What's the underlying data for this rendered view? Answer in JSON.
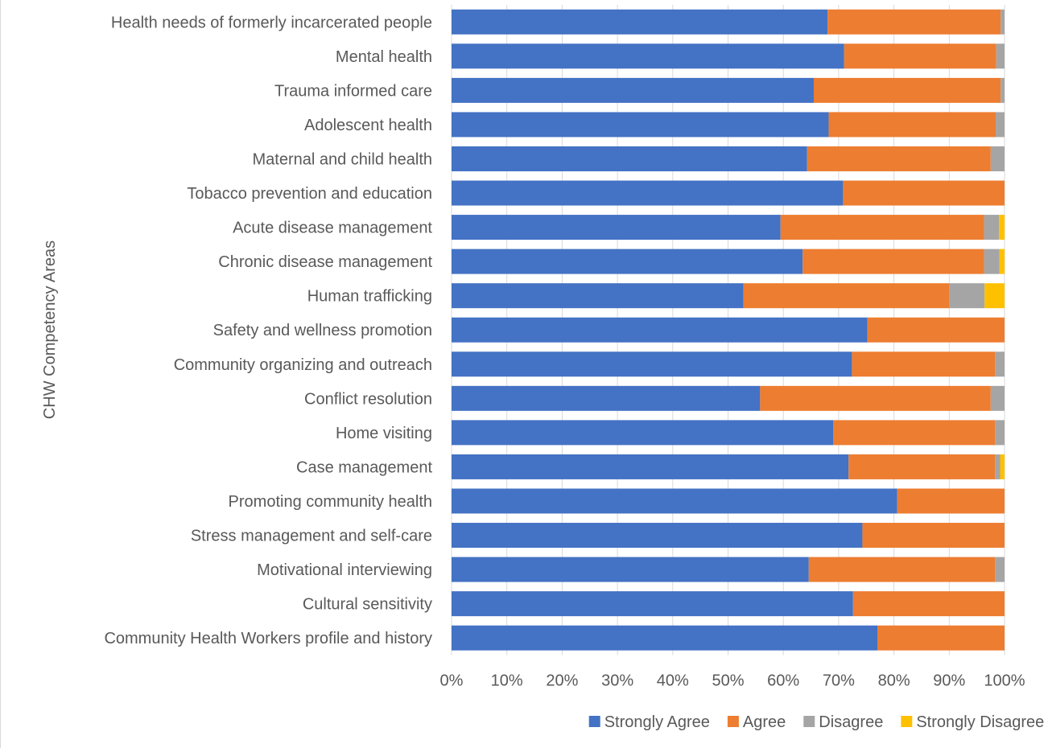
{
  "chart_data": {
    "type": "bar",
    "orientation": "horizontal",
    "stacked": "100%",
    "title": "",
    "xlabel": "",
    "ylabel": "CHW Competency Areas",
    "xlim": [
      0,
      100
    ],
    "x_ticks": [
      "0%",
      "10%",
      "20%",
      "30%",
      "40%",
      "50%",
      "60%",
      "70%",
      "80%",
      "90%",
      "100%"
    ],
    "grid": "vertical",
    "legend_position": "bottom",
    "categories": [
      "Health needs of formerly incarcerated people",
      "Mental health",
      "Trauma informed care",
      "Adolescent health",
      "Maternal and child health",
      "Tobacco prevention and education",
      "Acute disease management",
      "Chronic disease management",
      "Human trafficking",
      "Safety and wellness promotion",
      "Community organizing and outreach",
      "Conflict resolution",
      "Home visiting",
      "Case management",
      "Promoting community health",
      "Stress management and self-care",
      "Motivational interviewing",
      "Cultural sensitivity",
      "Community Health Workers profile and history"
    ],
    "series": [
      {
        "name": "Strongly Agree",
        "color": "#4472C4",
        "values": [
          68,
          71,
          65.5,
          68.2,
          64.3,
          70.8,
          59.5,
          63.5,
          52.8,
          75.2,
          72.4,
          55.8,
          69,
          71.8,
          80.6,
          74.3,
          64.6,
          72.6,
          77
        ]
      },
      {
        "name": "Agree",
        "color": "#ED7D31",
        "values": [
          31.3,
          27.5,
          33.8,
          30.2,
          33.2,
          29.2,
          36.8,
          32.8,
          37.2,
          24.8,
          25.9,
          41.7,
          29.3,
          26.5,
          19.4,
          25.7,
          33.7,
          27.4,
          23
        ]
      },
      {
        "name": "Disagree",
        "color": "#A5A5A5",
        "values": [
          0.7,
          1.5,
          0.7,
          1.6,
          2.5,
          0,
          2.7,
          2.8,
          6.4,
          0,
          1.7,
          2.5,
          1.7,
          0.9,
          0,
          0,
          1.7,
          0,
          0
        ]
      },
      {
        "name": "Strongly Disagree",
        "color": "#FFC000",
        "values": [
          0,
          0,
          0,
          0,
          0,
          0,
          1,
          0.9,
          3.6,
          0,
          0,
          0,
          0,
          0.8,
          0,
          0,
          0,
          0,
          0
        ]
      }
    ]
  }
}
